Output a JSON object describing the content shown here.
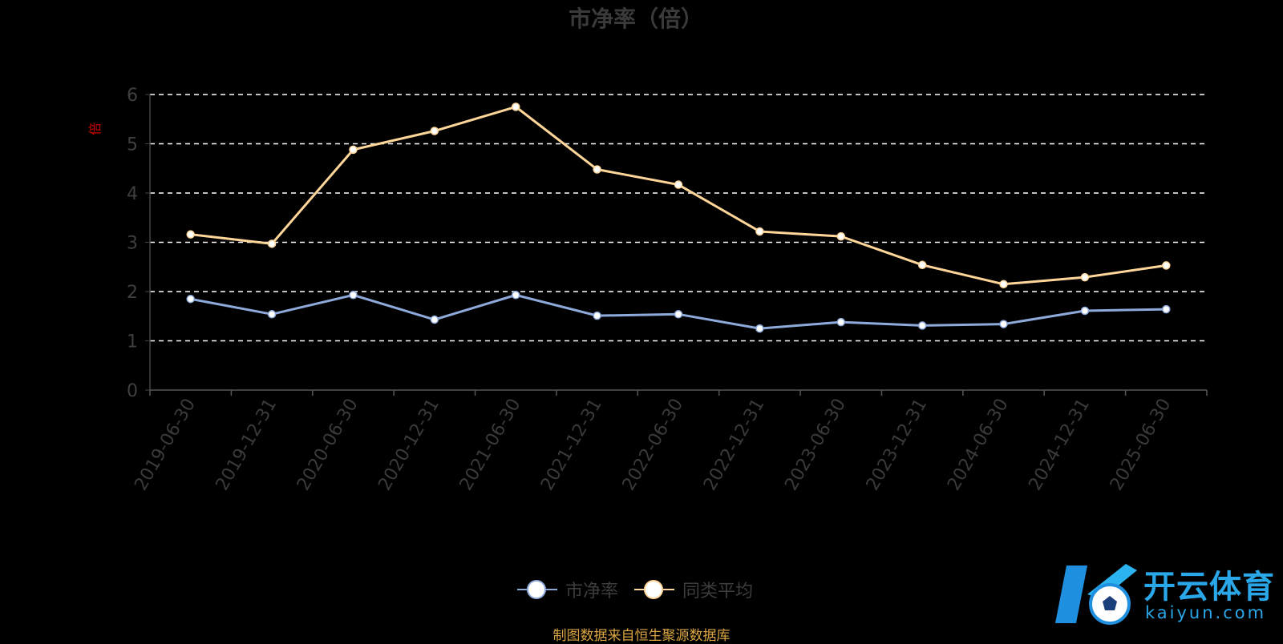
{
  "chart_data": {
    "type": "line",
    "title": "市净率（倍）",
    "ylabel": "倍",
    "categories": [
      "2019-06-30",
      "2019-12-31",
      "2020-06-30",
      "2020-12-31",
      "2021-06-30",
      "2021-12-31",
      "2022-06-30",
      "2022-12-31",
      "2023-06-30",
      "2023-12-31",
      "2024-06-30",
      "2024-12-31",
      "2025-06-30"
    ],
    "yticks": [
      "0",
      "1",
      "2",
      "3",
      "4",
      "5",
      "6"
    ],
    "ylim": [
      0,
      6
    ],
    "grid": true,
    "series": [
      {
        "name": "市净率",
        "color": "#8eaadb",
        "values": [
          1.85,
          1.54,
          1.93,
          1.43,
          1.93,
          1.51,
          1.54,
          1.25,
          1.38,
          1.31,
          1.34,
          1.61,
          1.64
        ]
      },
      {
        "name": "同类平均",
        "color": "#ffd699",
        "values": [
          3.16,
          2.97,
          4.88,
          5.26,
          5.75,
          4.48,
          4.17,
          3.22,
          3.12,
          2.54,
          2.15,
          2.29,
          2.53
        ]
      }
    ],
    "legend_position": "bottom-center"
  },
  "source_text": "制图数据来自恒生聚源数据库",
  "logo": {
    "text": "开云体育",
    "sub": "kaiyun.com"
  }
}
